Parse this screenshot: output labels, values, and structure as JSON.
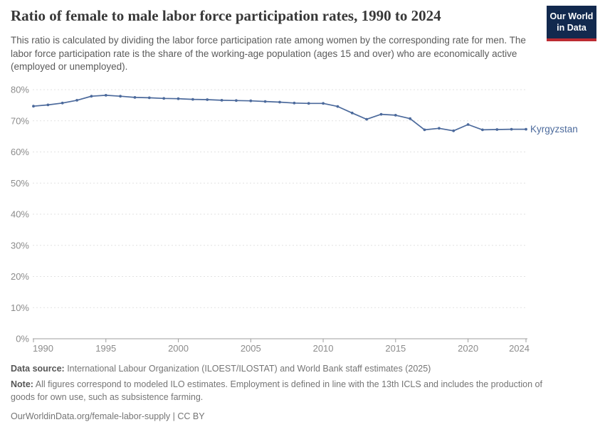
{
  "header": {
    "title": "Ratio of female to male labor force participation rates, 1990 to 2024",
    "subtitle": "This ratio is calculated by dividing the labor force participation rate among women by the corresponding rate for men. The labor force participation rate is the share of the working-age population (ages 15 and over) who are economically active (employed or unemployed).",
    "logo": {
      "line1": "Our World",
      "line2": "in Data"
    }
  },
  "chart_data": {
    "type": "line",
    "title": "Ratio of female to male labor force participation rates, 1990 to 2024",
    "x": [
      1990,
      1991,
      1992,
      1993,
      1994,
      1995,
      1996,
      1997,
      1998,
      1999,
      2000,
      2001,
      2002,
      2003,
      2004,
      2005,
      2006,
      2007,
      2008,
      2009,
      2010,
      2011,
      2012,
      2013,
      2014,
      2015,
      2016,
      2017,
      2018,
      2019,
      2020,
      2021,
      2022,
      2023,
      2024
    ],
    "series": [
      {
        "name": "Kyrgyzstan",
        "color": "#4c6a9c",
        "values": [
          74.7,
          75.1,
          75.7,
          76.6,
          77.9,
          78.2,
          77.9,
          77.5,
          77.4,
          77.2,
          77.1,
          76.9,
          76.8,
          76.6,
          76.5,
          76.4,
          76.2,
          76.0,
          75.7,
          75.6,
          75.6,
          74.6,
          72.5,
          70.5,
          72.1,
          71.8,
          70.7,
          67.1,
          67.6,
          66.8,
          68.8,
          67.1,
          67.2,
          67.3,
          67.3
        ]
      }
    ],
    "xticks": [
      1990,
      1995,
      2000,
      2005,
      2010,
      2015,
      2020,
      2024
    ],
    "yticks": [
      0,
      10,
      20,
      30,
      40,
      50,
      60,
      70,
      80
    ],
    "ylim": [
      0,
      80
    ],
    "ytick_suffix": "%",
    "grid": "horizontal-dashed",
    "legend_position": "end-of-line-label",
    "end_label": "Kyrgyzstan",
    "colors": {
      "line": "#4c6a9c",
      "grid": "#e2e2e2",
      "axis": "#9e9e9e",
      "tick_label": "#8c8c8c"
    }
  },
  "footer": {
    "datasource_label": "Data source:",
    "datasource_text": " International Labour Organization (ILOEST/ILOSTAT) and World Bank staff estimates (2025)",
    "note_label": "Note:",
    "note_text": " All figures correspond to modeled ILO estimates. Employment is defined in line with the 13th ICLS and includes the production of goods for own use, such as subsistence farming.",
    "url_text": "OurWorldinData.org/female-labor-supply | CC BY"
  }
}
